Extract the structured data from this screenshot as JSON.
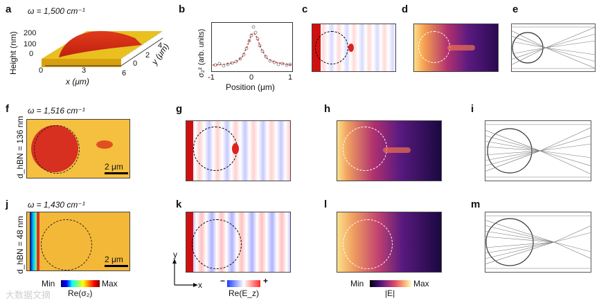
{
  "panel_labels": [
    "a",
    "b",
    "c",
    "d",
    "e",
    "f",
    "g",
    "h",
    "i",
    "j",
    "k",
    "l",
    "m"
  ],
  "panel_a": {
    "omega": "ω = 1,500 cm⁻¹",
    "zlabel": "Height (nm)",
    "zticks": [
      "200",
      "100",
      "0"
    ],
    "xticks": [
      "0",
      "3",
      "6"
    ],
    "xlabel": "x (μm)",
    "yticks": [
      "0",
      "2",
      "4"
    ],
    "ylabel": "y (μm)"
  },
  "panel_b": {
    "ylabel": "σ₂² (arb. units)",
    "xlabel": "Position (μm)",
    "xticks": [
      "-1",
      "0",
      "1"
    ]
  },
  "panel_f": {
    "omega": "ω = 1,516 cm⁻¹",
    "side_label": "d_hBN = 136 nm",
    "scale": "2 μm"
  },
  "panel_j": {
    "omega": "ω = 1,430 cm⁻¹",
    "side_label": "d_hBN = 48 nm",
    "scale": "2 μm"
  },
  "colorbars": {
    "jet_min": "Min",
    "jet_max": "Max",
    "jet_title": "Re(σ₂)",
    "rwb_minus": "−",
    "rwb_plus": "+",
    "rwb_title": "Re(E_z)",
    "inf_min": "Min",
    "inf_max": "Max",
    "inf_title": "|E|"
  },
  "axes_k": {
    "x": "x",
    "y": "y"
  },
  "watermark": "大数据文摘",
  "colors": {
    "accent_red": "#e02020",
    "panel_border": "#444444"
  }
}
